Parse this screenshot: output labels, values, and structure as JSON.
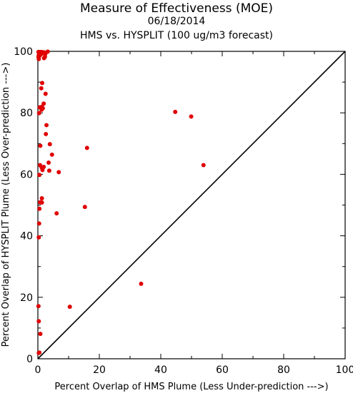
{
  "chart_data": {
    "type": "scatter",
    "title": "Measure of Effectiveness (MOE)",
    "date": "06/18/2014",
    "subtitle": "HMS vs. HYSPLIT  (100 ug/m3 forecast)",
    "xlabel": "Percent Overlap of HMS Plume (Less Under-prediction --->)",
    "ylabel": "Percent Overlap of HYSPLIT Plume (Less Over-prediction --->)",
    "xlim": [
      0,
      100
    ],
    "ylim": [
      0,
      100
    ],
    "xticks": [
      "0",
      "20",
      "40",
      "60",
      "80",
      "100"
    ],
    "yticks": [
      "0",
      "20",
      "40",
      "60",
      "80",
      "100"
    ],
    "grid": false,
    "reference_line": "y = x",
    "point_color": "#e00000",
    "points": [
      [
        0.2,
        99.8
      ],
      [
        0.4,
        99.5
      ],
      [
        0.6,
        99.8
      ],
      [
        0.9,
        99.6
      ],
      [
        1.2,
        99.8
      ],
      [
        1.5,
        99.5
      ],
      [
        0.3,
        98.8
      ],
      [
        0.6,
        98.6
      ],
      [
        1.0,
        99.0
      ],
      [
        1.9,
        99.7
      ],
      [
        2.4,
        99.1
      ],
      [
        3.2,
        99.9
      ],
      [
        0.2,
        98.2
      ],
      [
        0.3,
        97.5
      ],
      [
        2.3,
        98.2
      ],
      [
        2.0,
        97.8
      ],
      [
        1.4,
        89.7
      ],
      [
        1.1,
        88.0
      ],
      [
        2.5,
        86.2
      ],
      [
        1.9,
        83.0
      ],
      [
        0.6,
        81.8
      ],
      [
        1.3,
        82.0
      ],
      [
        1.6,
        81.5
      ],
      [
        1.2,
        81.0
      ],
      [
        0.4,
        79.9
      ],
      [
        2.8,
        76.0
      ],
      [
        2.6,
        73.1
      ],
      [
        3.9,
        69.8
      ],
      [
        0.8,
        69.3
      ],
      [
        4.6,
        66.4
      ],
      [
        3.5,
        63.8
      ],
      [
        0.7,
        63.0
      ],
      [
        1.2,
        62.3
      ],
      [
        1.9,
        62.4
      ],
      [
        1.5,
        61.4
      ],
      [
        3.7,
        61.2
      ],
      [
        6.8,
        60.7
      ],
      [
        0.5,
        59.8
      ],
      [
        1.3,
        52.2
      ],
      [
        0.7,
        50.9
      ],
      [
        1.3,
        50.8
      ],
      [
        0.5,
        48.8
      ],
      [
        6.1,
        47.3
      ],
      [
        0.4,
        44.0
      ],
      [
        0.3,
        39.5
      ],
      [
        0.2,
        17.1
      ],
      [
        0.3,
        12.2
      ],
      [
        0.8,
        8.1
      ],
      [
        0.3,
        1.9
      ],
      [
        0.5,
        2.0
      ],
      [
        16.0,
        68.6
      ],
      [
        15.3,
        49.4
      ],
      [
        10.4,
        16.9
      ],
      [
        33.6,
        24.4
      ],
      [
        44.7,
        80.3
      ],
      [
        49.9,
        78.8
      ],
      [
        53.9,
        63.0
      ]
    ]
  }
}
